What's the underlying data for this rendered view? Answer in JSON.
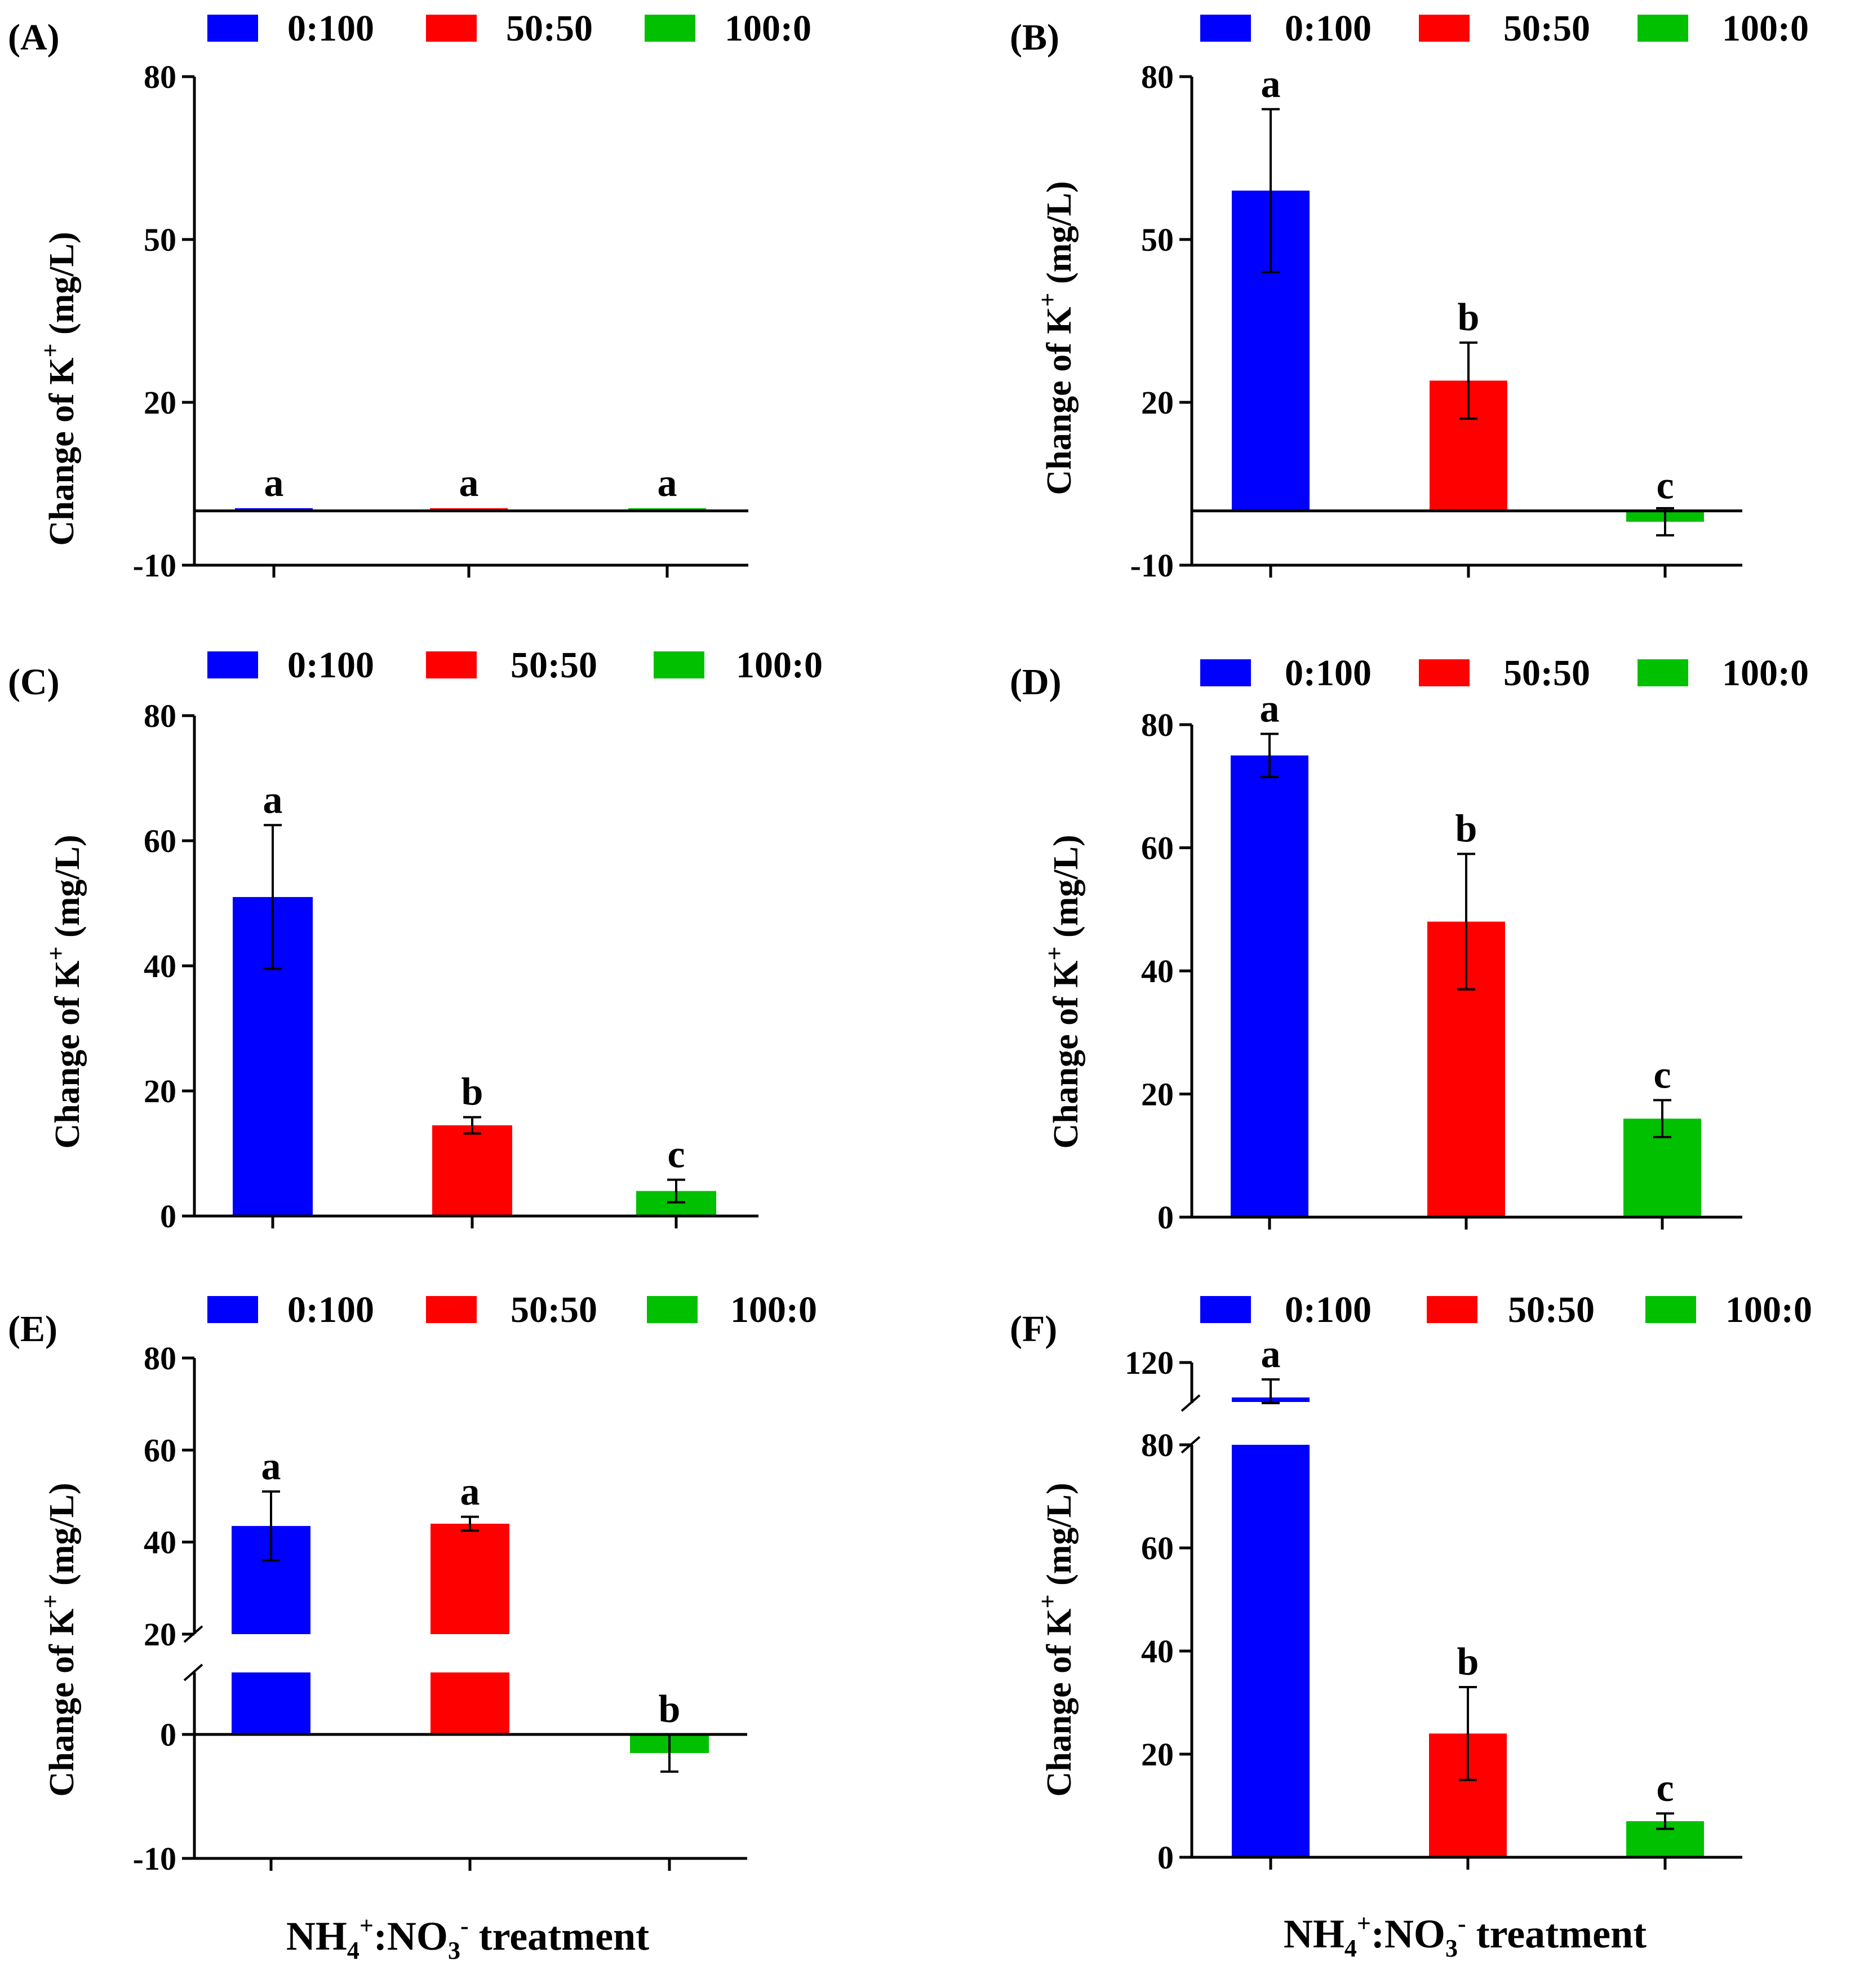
{
  "figure": {
    "shared_xlabel": {
      "base": "NH",
      "sub1": "4",
      "sup1": "+",
      "mid": ":NO",
      "sub2": "3",
      "sup2": "-",
      "rest": " treatment"
    }
  },
  "chart_data": [
    {
      "panel": "(A)",
      "type": "bar",
      "categories": [
        "0:100",
        "50:50",
        "100:0"
      ],
      "legend": [
        "0:100",
        "50:50",
        "100:0"
      ],
      "colors": [
        "#0000ff",
        "#ff0000",
        "#00c000"
      ],
      "values": [
        0.5,
        0.5,
        0.5
      ],
      "errors": [
        0,
        0,
        0
      ],
      "significance": [
        "a",
        "a",
        "a"
      ],
      "ylabel": {
        "main": "Change of K",
        "sup": "+",
        "unit": " (mg/L)"
      },
      "ylim": [
        -10,
        80
      ],
      "yticks": [
        -10,
        20,
        50,
        80
      ],
      "ytick_labels": [
        "-10",
        "20",
        "50",
        "80"
      ],
      "legend_position": "top"
    },
    {
      "panel": "(B)",
      "type": "bar",
      "categories": [
        "0:100",
        "50:50",
        "100:0"
      ],
      "legend": [
        "0:100",
        "50:50",
        "100:0"
      ],
      "colors": [
        "#0000ff",
        "#ff0000",
        "#00c000"
      ],
      "values": [
        59,
        24,
        -2
      ],
      "errors": [
        15,
        7,
        2.5
      ],
      "significance": [
        "a",
        "b",
        "c"
      ],
      "ylabel": {
        "main": "Change of K",
        "sup": "+",
        "unit": " (mg/L)"
      },
      "ylim": [
        -10,
        80
      ],
      "yticks": [
        -10,
        20,
        50,
        80
      ],
      "ytick_labels": [
        "-10",
        "20",
        "50",
        "80"
      ],
      "legend_position": "top"
    },
    {
      "panel": "(C)",
      "type": "bar",
      "categories": [
        "0:100",
        "50:50",
        "100:0"
      ],
      "legend": [
        "0:100",
        "50:50",
        "100:0"
      ],
      "colors": [
        "#0000ff",
        "#ff0000",
        "#00c000"
      ],
      "values": [
        51,
        14.5,
        4
      ],
      "errors": [
        11.5,
        1.3,
        1.8
      ],
      "significance": [
        "a",
        "b",
        "c"
      ],
      "ylabel": {
        "main": "Change of K",
        "sup": "+",
        "unit": " (mg/L)"
      },
      "ylim": [
        0,
        80
      ],
      "yticks": [
        0,
        20,
        40,
        60,
        80
      ],
      "ytick_labels": [
        "0",
        "20",
        "40",
        "60",
        "80"
      ],
      "legend_position": "top"
    },
    {
      "panel": "(D)",
      "type": "bar",
      "categories": [
        "0:100",
        "50:50",
        "100:0"
      ],
      "legend": [
        "0:100",
        "50:50",
        "100:0"
      ],
      "colors": [
        "#0000ff",
        "#ff0000",
        "#00c000"
      ],
      "values": [
        75,
        48,
        16
      ],
      "errors": [
        3.5,
        11,
        3
      ],
      "significance": [
        "a",
        "b",
        "c"
      ],
      "ylabel": {
        "main": "Change of K",
        "sup": "+",
        "unit": " (mg/L)"
      },
      "ylim": [
        0,
        80
      ],
      "yticks": [
        0,
        20,
        40,
        60,
        80
      ],
      "ytick_labels": [
        "0",
        "20",
        "40",
        "60",
        "80"
      ],
      "legend_position": "top"
    },
    {
      "panel": "(E)",
      "type": "bar",
      "categories": [
        "0:100",
        "50:50",
        "100:0"
      ],
      "legend": [
        "0:100",
        "50:50",
        "100:0"
      ],
      "colors": [
        "#0000ff",
        "#ff0000",
        "#00c000"
      ],
      "values": [
        43.5,
        44,
        -1.5
      ],
      "errors": [
        7.5,
        1.5,
        1.5
      ],
      "significance": [
        "a",
        "a",
        "b"
      ],
      "ylabel": {
        "main": "Change of K",
        "sup": "+",
        "unit": " (mg/L)"
      },
      "ylim": [
        -10,
        80
      ],
      "axis_break": [
        5,
        20
      ],
      "yticks": [
        -10,
        0,
        20,
        40,
        60,
        80
      ],
      "ytick_labels": [
        "-10",
        "0",
        "20",
        "40",
        "60",
        "80"
      ],
      "legend_position": "top"
    },
    {
      "panel": "(F)",
      "type": "bar",
      "categories": [
        "0:100",
        "50:50",
        "100:0"
      ],
      "legend": [
        "0:100",
        "50:50",
        "100:0"
      ],
      "colors": [
        "#0000ff",
        "#ff0000",
        "#00c000"
      ],
      "values": [
        109,
        24,
        7
      ],
      "errors": [
        6,
        9,
        1.5
      ],
      "significance": [
        "a",
        "b",
        "c"
      ],
      "ylabel": {
        "main": "Change of K",
        "sup": "+",
        "unit": " (mg/L)"
      },
      "ylim": [
        0,
        120
      ],
      "axis_break": [
        80,
        108
      ],
      "yticks": [
        0,
        20,
        40,
        60,
        80,
        120
      ],
      "ytick_labels": [
        "0",
        "20",
        "40",
        "60",
        "80",
        "120"
      ],
      "legend_position": "top"
    }
  ]
}
